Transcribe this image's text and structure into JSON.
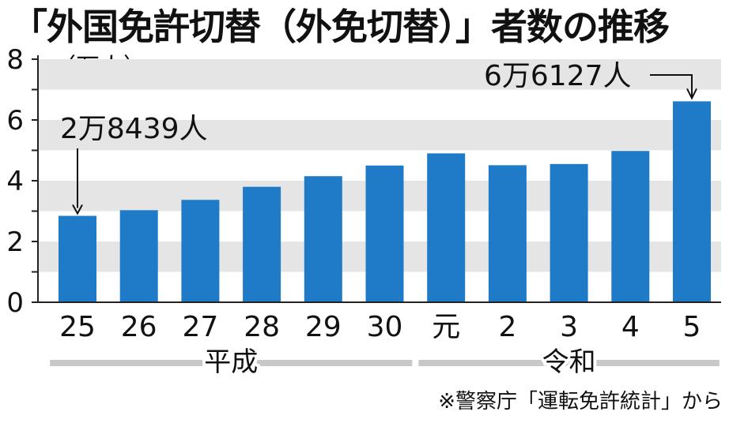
{
  "title": "「外国免許切替（外免切替）」者数の推移",
  "unit_label": "（万人）",
  "source": "※警察庁「運転免許統計」から",
  "colors": {
    "bar": "#1f7ac7",
    "band": "#e5e5e5",
    "axis": "#222222",
    "era_bar": "#c8c8c8"
  },
  "chart_data": {
    "type": "bar",
    "title": "「外国免許切替（外免切替）」者数の推移",
    "xlabel": "",
    "ylabel": "（万人）",
    "categories": [
      "25",
      "26",
      "27",
      "28",
      "29",
      "30",
      "元",
      "2",
      "3",
      "4",
      "5"
    ],
    "values": [
      2.8439,
      3.03,
      3.37,
      3.8,
      4.15,
      4.5,
      4.9,
      4.51,
      4.55,
      4.98,
      6.6127
    ],
    "ylim": [
      0,
      8
    ],
    "yticks": [
      "0",
      "2",
      "4",
      "6",
      "8"
    ],
    "grid": "alternating bands",
    "era_groups": [
      {
        "label": "平成",
        "categories": [
          "25",
          "26",
          "27",
          "28",
          "29",
          "30"
        ]
      },
      {
        "label": "令和",
        "categories": [
          "元",
          "2",
          "3",
          "4",
          "5"
        ]
      }
    ],
    "annotations": [
      {
        "text": "2万8439人",
        "category": "25"
      },
      {
        "text": "6万6127人",
        "category": "5"
      }
    ]
  }
}
